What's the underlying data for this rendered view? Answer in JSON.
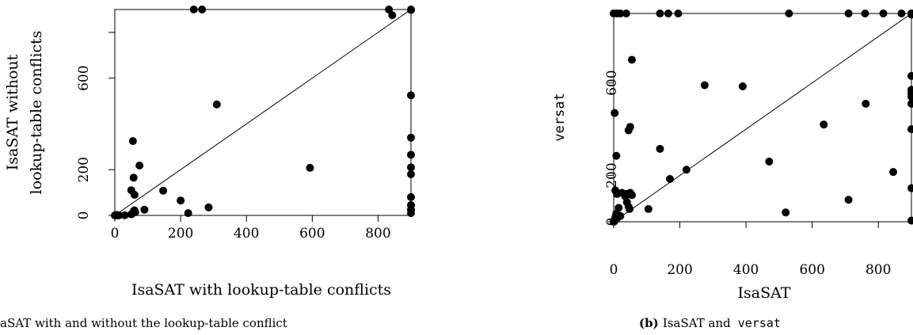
{
  "chart_data": [
    {
      "type": "scatter",
      "xlabel": "IsaSAT with lookup-table conflicts",
      "ylabel": [
        "IsaSAT without",
        "lookup-table conflicts"
      ],
      "xticks": [
        "0",
        "200",
        "400",
        "600",
        "800"
      ],
      "yticks": [
        "0",
        "200",
        "600"
      ],
      "xlim": [
        0,
        900
      ],
      "ylim": [
        0,
        900
      ],
      "diagonal": true,
      "caption_label": "",
      "caption_text": "aSAT with and without the lookup-table conflict",
      "points": [
        [
          0,
          0
        ],
        [
          3,
          1
        ],
        [
          7,
          2
        ],
        [
          12,
          0
        ],
        [
          5,
          0
        ],
        [
          30,
          1
        ],
        [
          50,
          5
        ],
        [
          55,
          10
        ],
        [
          58,
          15
        ],
        [
          60,
          22
        ],
        [
          58,
          20
        ],
        [
          62,
          14
        ],
        [
          90,
          25
        ],
        [
          223,
          10
        ],
        [
          285,
          35
        ],
        [
          200,
          65
        ],
        [
          147,
          108
        ],
        [
          75,
          218
        ],
        [
          57,
          165
        ],
        [
          50,
          110
        ],
        [
          60,
          90
        ],
        [
          55,
          325
        ],
        [
          310,
          485
        ],
        [
          593,
          208
        ],
        [
          240,
          900
        ],
        [
          265,
          900
        ],
        [
          833,
          900
        ],
        [
          843,
          875
        ],
        [
          900,
          900
        ],
        [
          900,
          898
        ],
        [
          900,
          525
        ],
        [
          900,
          340
        ],
        [
          900,
          265
        ],
        [
          900,
          210
        ],
        [
          900,
          180
        ],
        [
          900,
          80
        ],
        [
          900,
          45
        ],
        [
          900,
          25
        ],
        [
          900,
          10
        ]
      ]
    },
    {
      "type": "scatter",
      "xlabel": "IsaSAT",
      "ylabel": "versat",
      "xticks": [
        "0",
        "200",
        "400",
        "600",
        "800"
      ],
      "yticks": [
        "0",
        "200",
        "600"
      ],
      "xlim": [
        0,
        900
      ],
      "ylim": [
        0,
        900
      ],
      "diagonal": true,
      "caption_label": "(b)",
      "caption_text": "IsaSAT and",
      "caption_code": "versat",
      "points": [
        [
          0,
          0
        ],
        [
          2,
          2
        ],
        [
          3,
          5
        ],
        [
          5,
          20
        ],
        [
          8,
          35
        ],
        [
          10,
          15
        ],
        [
          15,
          60
        ],
        [
          20,
          25
        ],
        [
          5,
          135
        ],
        [
          10,
          120
        ],
        [
          25,
          125
        ],
        [
          35,
          110
        ],
        [
          40,
          85
        ],
        [
          45,
          65
        ],
        [
          48,
          55
        ],
        [
          40,
          120
        ],
        [
          50,
          125
        ],
        [
          55,
          115
        ],
        [
          45,
          395
        ],
        [
          50,
          410
        ],
        [
          55,
          700
        ],
        [
          3,
          470
        ],
        [
          8,
          285
        ],
        [
          105,
          55
        ],
        [
          140,
          315
        ],
        [
          170,
          185
        ],
        [
          220,
          225
        ],
        [
          275,
          590
        ],
        [
          390,
          585
        ],
        [
          470,
          260
        ],
        [
          520,
          40
        ],
        [
          635,
          420
        ],
        [
          710,
          95
        ],
        [
          762,
          510
        ],
        [
          845,
          215
        ],
        [
          0,
          900
        ],
        [
          10,
          900
        ],
        [
          20,
          900
        ],
        [
          38,
          900
        ],
        [
          140,
          900
        ],
        [
          165,
          900
        ],
        [
          195,
          900
        ],
        [
          530,
          900
        ],
        [
          710,
          900
        ],
        [
          760,
          900
        ],
        [
          815,
          900
        ],
        [
          870,
          900
        ],
        [
          900,
          900
        ],
        [
          900,
          895
        ],
        [
          900,
          630
        ],
        [
          900,
          570
        ],
        [
          900,
          555
        ],
        [
          900,
          540
        ],
        [
          900,
          510
        ],
        [
          900,
          400
        ],
        [
          900,
          145
        ],
        [
          900,
          5
        ]
      ]
    }
  ]
}
